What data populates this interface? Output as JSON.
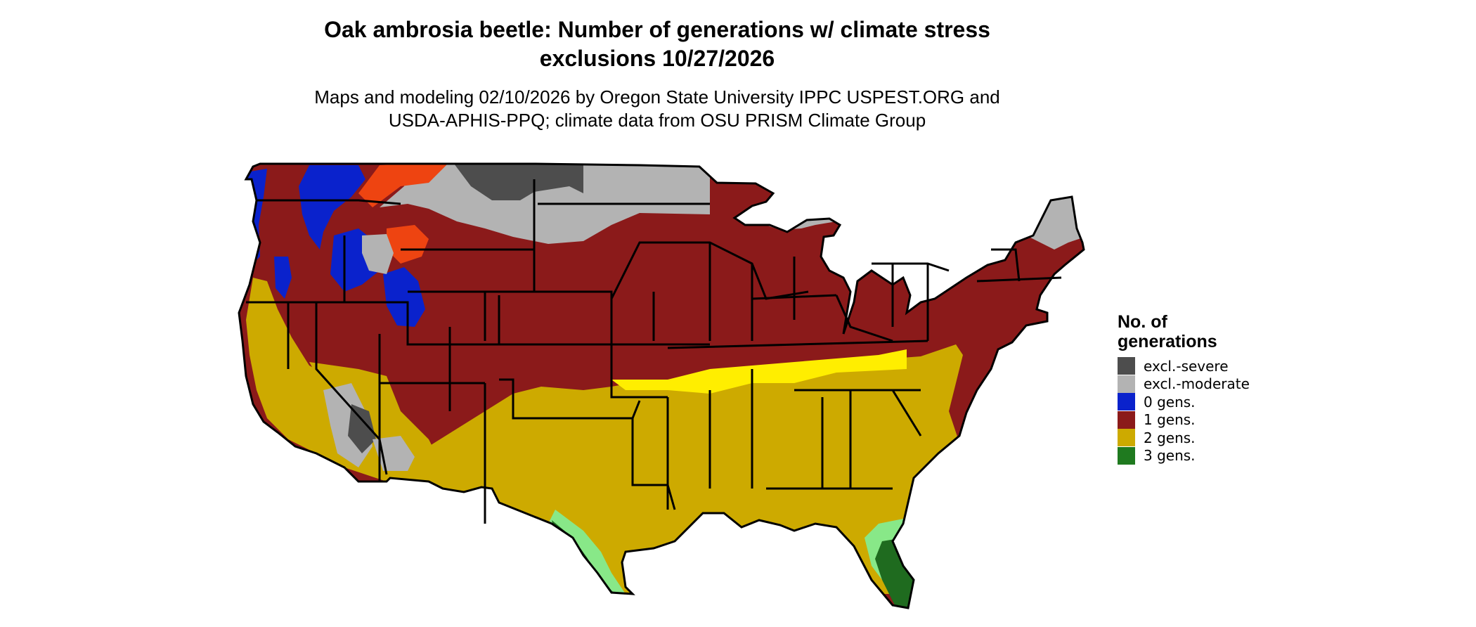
{
  "title_line1": "Oak ambrosia beetle: Number of generations w/ climate stress",
  "title_line2": "exclusions 10/27/2026",
  "subtitle_line1": "Maps and modeling 02/10/2026 by Oregon State University IPPC USPEST.ORG and",
  "subtitle_line2": "USDA-APHIS-PPQ; climate data from OSU PRISM Climate Group",
  "legend": {
    "title_line1": "No. of",
    "title_line2": "generations",
    "items": [
      {
        "label": "excl.-severe",
        "color": "#4d4d4d"
      },
      {
        "label": "excl.-moderate",
        "color": "#b3b3b3"
      },
      {
        "label": "0 gens.",
        "color": "#0a22cc"
      },
      {
        "label": "1 gens.",
        "color": "#8b1a1a"
      },
      {
        "label": "2 gens.",
        "color": "#cdaa00"
      },
      {
        "label": "3 gens.",
        "color": "#1f7a1f"
      }
    ]
  },
  "palette": {
    "severe": "#4d4d4d",
    "moderate": "#b3b3b3",
    "gen0": "#0a22cc",
    "gen1": "#8b1a1a",
    "gen1_hot": "#ee4411",
    "gen2": "#cdaa00",
    "gen2_hot": "#ffee00",
    "gen3": "#1f6b1f",
    "gen3_light": "#88e888",
    "border": "#000000"
  }
}
